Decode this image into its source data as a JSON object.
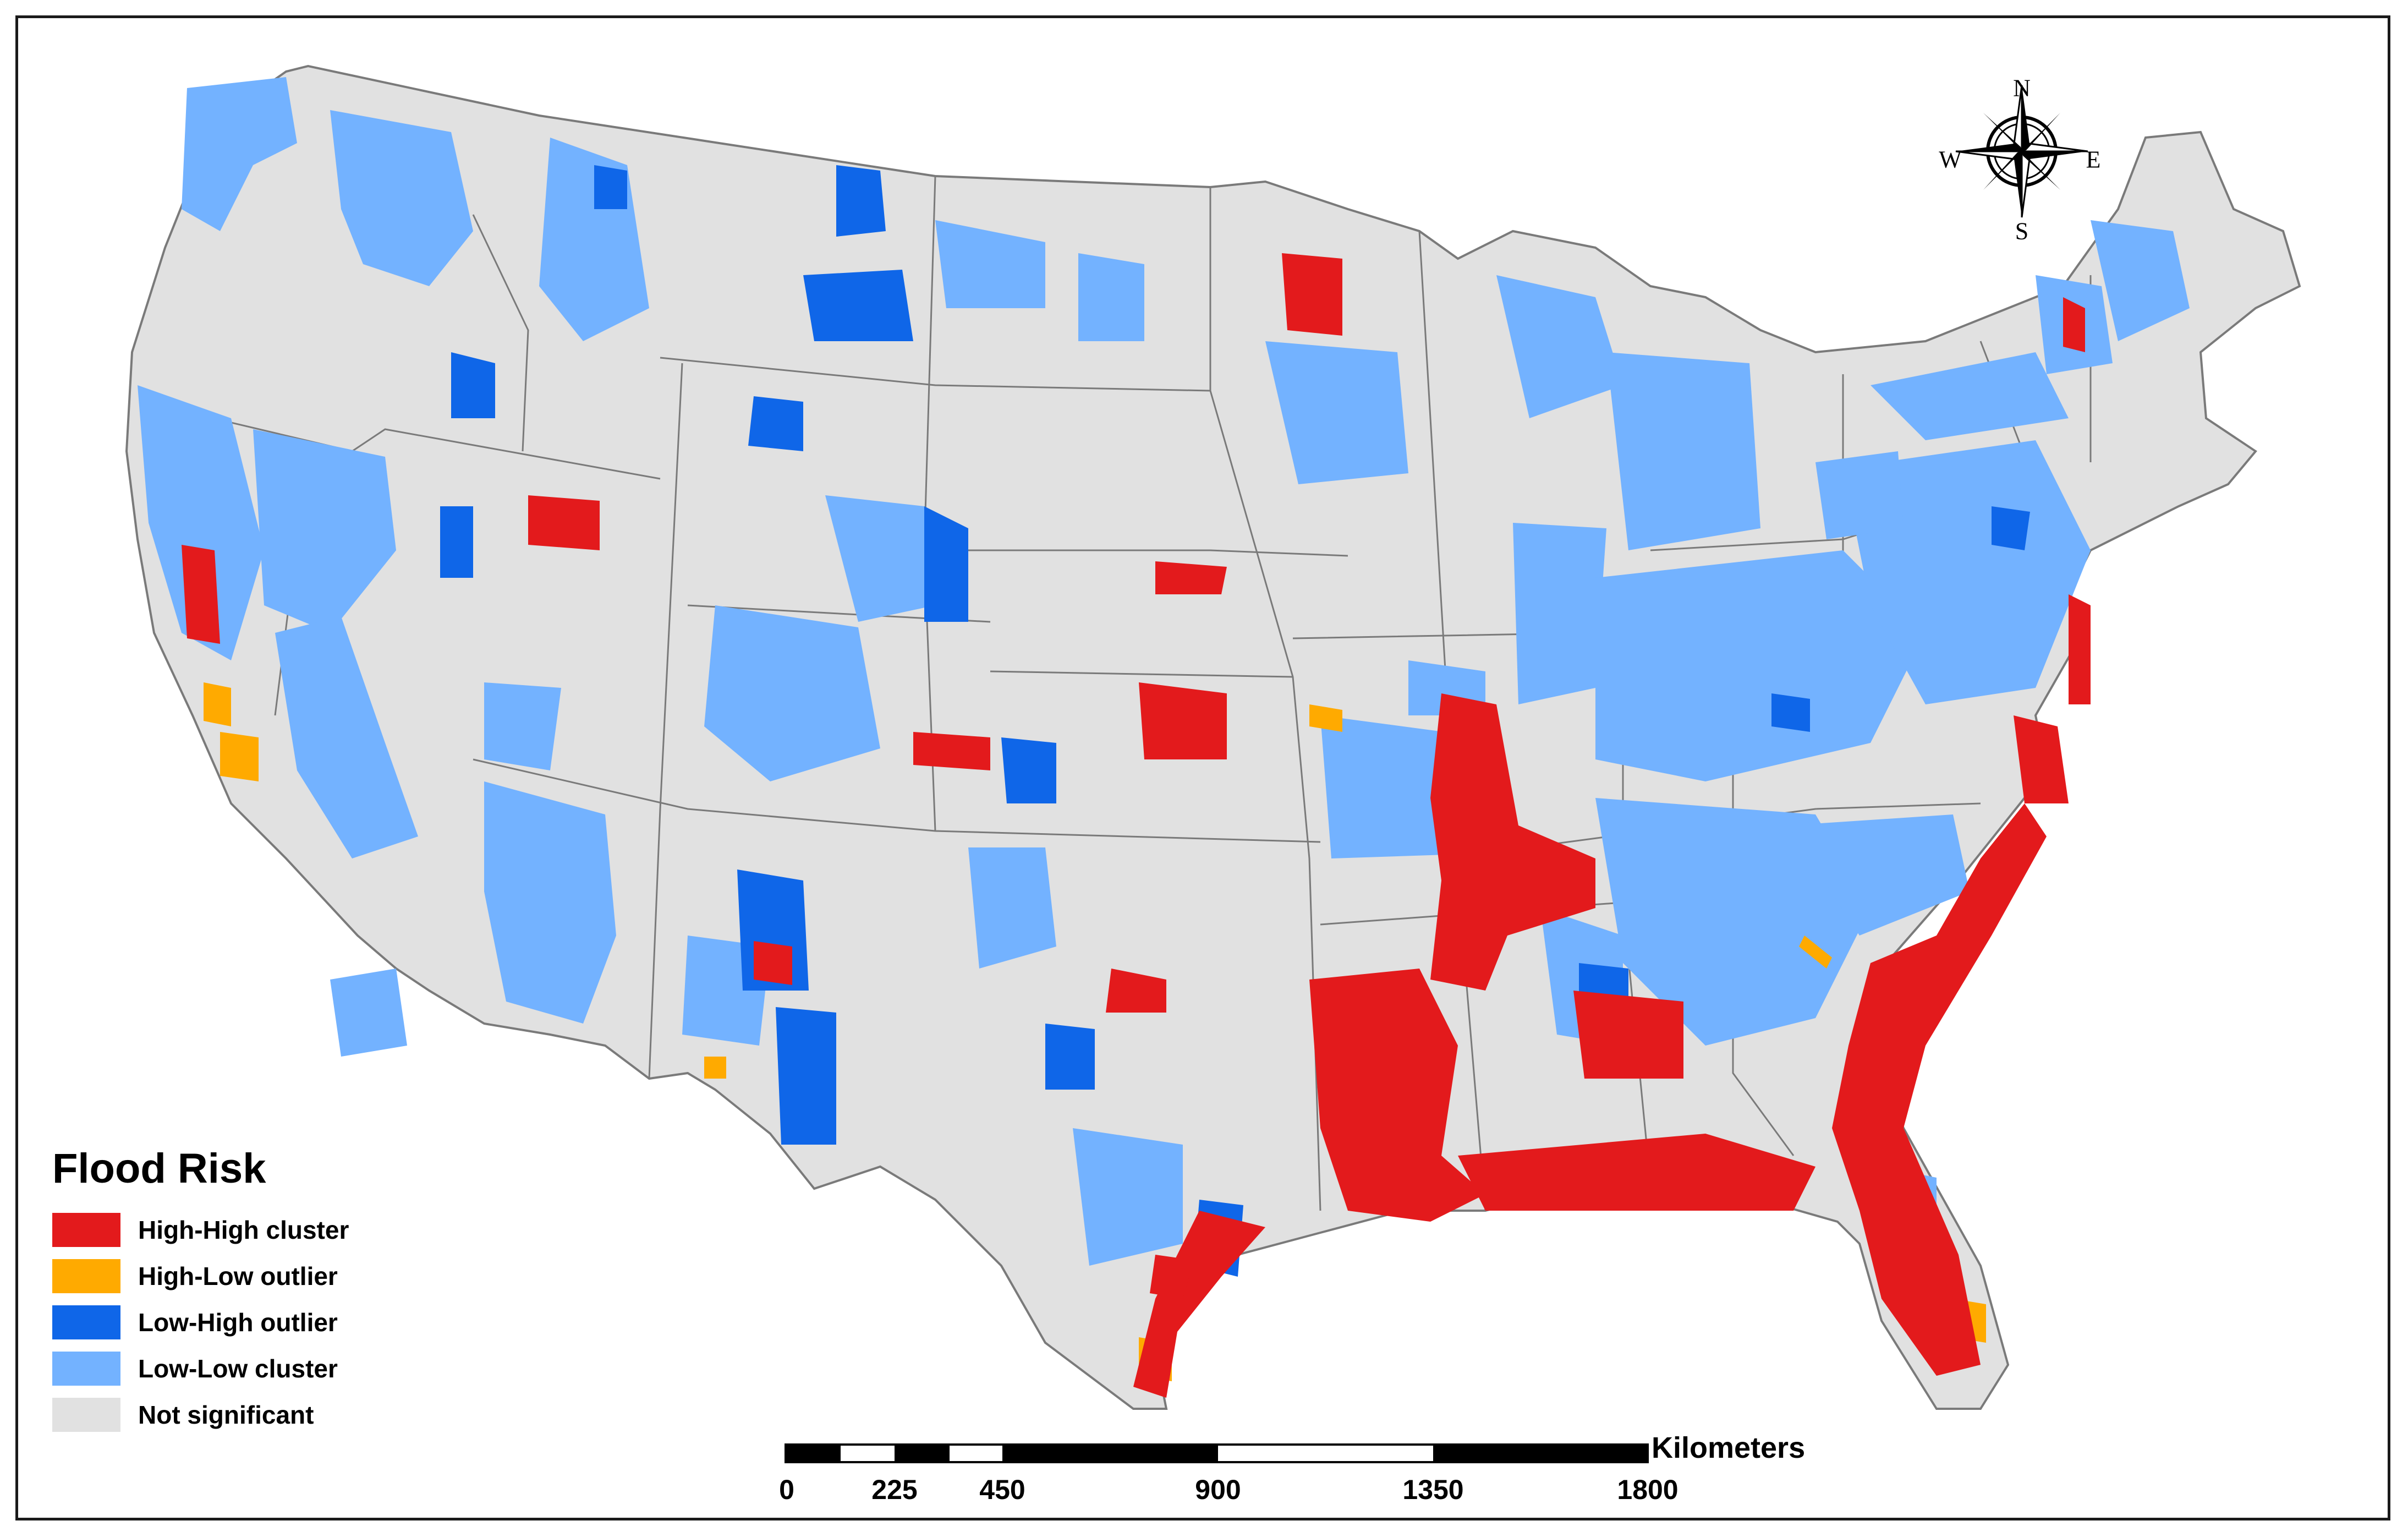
{
  "legend": {
    "title": "Flood Risk",
    "items": [
      {
        "label": "High-High cluster",
        "color": "#e31a1c"
      },
      {
        "label": "High-Low outlier",
        "color": "#ffaa00"
      },
      {
        "label": "Low-High outlier",
        "color": "#0f66e8"
      },
      {
        "label": "Low-Low cluster",
        "color": "#73b2ff"
      },
      {
        "label": "Not significant",
        "color": "#e1e1e1"
      }
    ]
  },
  "scale_bar": {
    "unit": "Kilometers",
    "ticks": [
      "0",
      "225",
      "450",
      "900",
      "1350",
      "1800"
    ]
  },
  "compass": {
    "north": "N",
    "south": "S",
    "east": "E",
    "west": "W"
  },
  "colors": {
    "high_high": "#e31a1c",
    "high_low": "#ffaa00",
    "low_high": "#0f66e8",
    "low_low": "#73b2ff",
    "not_significant": "#e1e1e1",
    "boundary": "#7a7a7a"
  }
}
